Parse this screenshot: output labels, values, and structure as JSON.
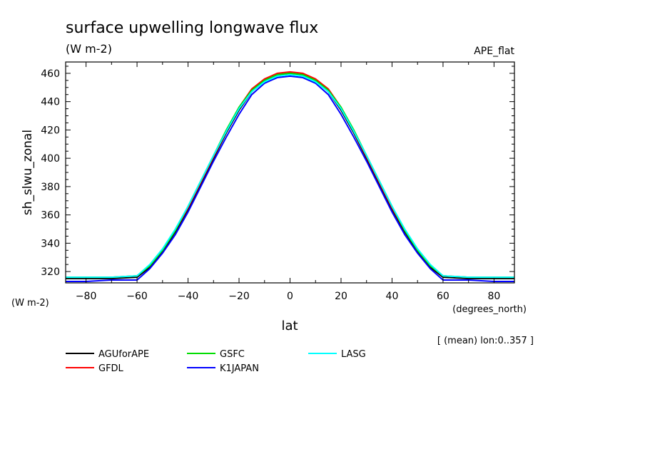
{
  "chart_data": {
    "type": "line",
    "title": "surface upwelling longwave flux",
    "units": "(W m-2)",
    "experiment": "APE_flat",
    "ylabel": "sh_slwu_zonal",
    "yunits": "(W m-2)",
    "xlabel": "lat",
    "xunits": "(degrees_north)",
    "note": "[ (mean) lon:0..357 ]",
    "xlim": [
      -88,
      88
    ],
    "ylim": [
      312,
      468
    ],
    "xticks": [
      -80,
      -60,
      -40,
      -20,
      0,
      20,
      40,
      60,
      80
    ],
    "yticks": [
      320,
      340,
      360,
      380,
      400,
      420,
      440,
      460
    ],
    "x": [
      -90,
      -80,
      -70,
      -60,
      -55,
      -50,
      -45,
      -40,
      -35,
      -30,
      -25,
      -20,
      -15,
      -10,
      -5,
      0,
      5,
      10,
      15,
      20,
      25,
      30,
      35,
      40,
      45,
      50,
      55,
      60,
      70,
      80,
      90
    ],
    "series": [
      {
        "name": "AGUforAPE",
        "color": "#000000",
        "values": [
          315,
          315,
          315,
          316,
          323,
          334,
          348,
          364,
          382,
          400,
          418,
          434,
          447,
          455,
          459,
          460,
          459,
          455,
          447,
          434,
          418,
          400,
          382,
          364,
          348,
          334,
          323,
          316,
          315,
          315,
          315
        ]
      },
      {
        "name": "GFDL",
        "color": "#ff0000",
        "values": [
          316,
          316,
          316,
          317,
          324,
          335,
          349,
          365,
          383,
          401,
          419,
          436,
          449,
          456,
          460,
          461,
          460,
          456,
          449,
          436,
          419,
          401,
          383,
          365,
          349,
          335,
          324,
          317,
          316,
          316,
          316
        ]
      },
      {
        "name": "GSFC",
        "color": "#00dd00",
        "values": [
          316,
          316,
          316,
          317,
          324,
          335,
          349,
          366,
          384,
          402,
          420,
          436,
          448,
          455,
          459,
          460,
          459,
          455,
          448,
          436,
          420,
          402,
          384,
          366,
          349,
          335,
          324,
          317,
          316,
          316,
          316
        ]
      },
      {
        "name": "K1JAPAN",
        "color": "#0000ff",
        "values": [
          313,
          313,
          314,
          314,
          322,
          333,
          346,
          362,
          380,
          398,
          415,
          431,
          445,
          453,
          457,
          458,
          457,
          453,
          445,
          431,
          415,
          398,
          380,
          362,
          346,
          333,
          322,
          314,
          314,
          313,
          313
        ]
      },
      {
        "name": "LASG",
        "color": "#00ffff",
        "values": [
          316,
          316,
          316,
          317,
          325,
          336,
          350,
          366,
          384,
          402,
          419,
          435,
          447,
          454,
          458,
          459,
          458,
          454,
          447,
          435,
          419,
          402,
          384,
          366,
          350,
          336,
          325,
          317,
          316,
          316,
          316
        ]
      }
    ],
    "legend": [
      {
        "name": "AGUforAPE",
        "color": "#000000"
      },
      {
        "name": "GFDL",
        "color": "#ff0000"
      },
      {
        "name": "GSFC",
        "color": "#00dd00"
      },
      {
        "name": "K1JAPAN",
        "color": "#0000ff"
      },
      {
        "name": "LASG",
        "color": "#00ffff"
      }
    ]
  }
}
